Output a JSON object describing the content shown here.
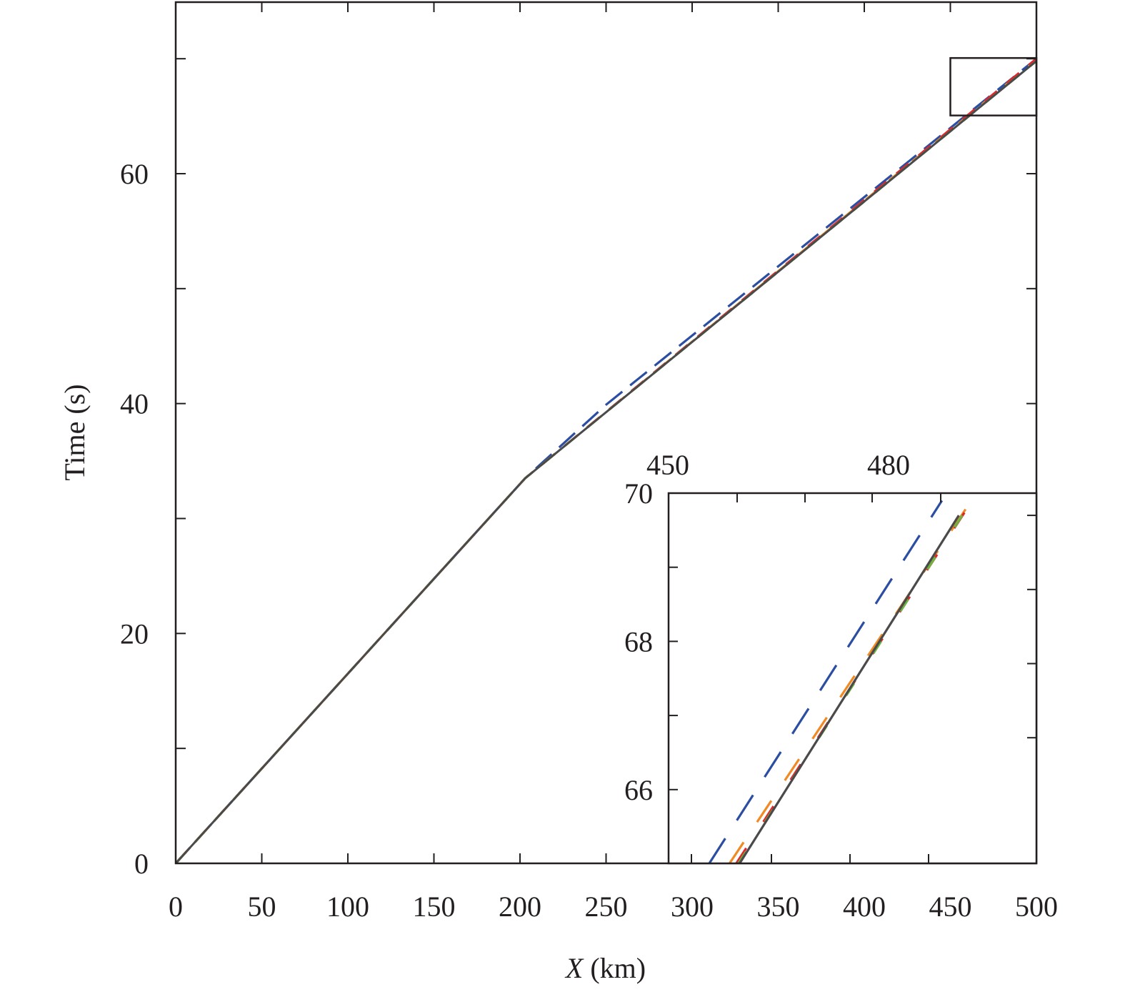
{
  "chart_data": {
    "type": "line",
    "title": "",
    "xlabel": "X (km)",
    "xlabel_var": "X",
    "xlabel_unit": " (km)",
    "ylabel": "Time (s)",
    "xlim": [
      0,
      500
    ],
    "ylim": [
      0,
      75
    ],
    "x_ticks": [
      "0",
      "50",
      "100",
      "150",
      "200",
      "250",
      "300",
      "350",
      "400",
      "450",
      "500"
    ],
    "y_ticks": [
      "0",
      "20",
      "40",
      "60"
    ],
    "grid": false,
    "legend": null,
    "colors": {
      "solid": "#4a4a4a",
      "blue_dashed": "#2b4ea2",
      "orange_dashed": "#f08a24",
      "red_dashed": "#e0262b",
      "green_dashed": "#6db33f",
      "axis": "#231f20"
    },
    "series": [
      {
        "name": "solid (reference)",
        "style": "solid",
        "color": "#4a4a4a",
        "x": [
          0,
          203,
          500
        ],
        "y": [
          0,
          33.5,
          69.8
        ]
      },
      {
        "name": "blue dashed",
        "style": "dashed",
        "color": "#2b4ea2",
        "x": [
          0,
          203,
          250,
          500
        ],
        "y": [
          0,
          33.5,
          39.9,
          70.0
        ]
      },
      {
        "name": "orange dashed",
        "style": "dashed",
        "color": "#f08a24",
        "x": [
          0,
          203,
          500
        ],
        "y": [
          0,
          33.5,
          69.9
        ]
      },
      {
        "name": "red dashed",
        "style": "dashed",
        "color": "#e0262b",
        "x": [
          0,
          203,
          500
        ],
        "y": [
          0,
          33.5,
          70.0
        ]
      },
      {
        "name": "green dashed",
        "style": "dashed",
        "color": "#6db33f",
        "x": [
          0,
          203,
          500
        ],
        "y": [
          0,
          33.5,
          69.8
        ]
      }
    ],
    "zoom_box": {
      "x": [
        450,
        500
      ],
      "y": [
        65,
        70
      ]
    },
    "inset": {
      "xlim": [
        450,
        504.5
      ],
      "ylim": [
        65,
        70
      ],
      "x_ticks": [
        "450",
        "480"
      ],
      "y_ticks": [
        "66",
        "68",
        "70"
      ],
      "series": [
        {
          "name": "solid (reference)",
          "x": [
            460.5,
            493
          ],
          "y": [
            65,
            69.7
          ]
        },
        {
          "name": "blue dashed",
          "x": [
            456,
            490.5
          ],
          "y": [
            65,
            69.9
          ]
        },
        {
          "name": "orange dashed",
          "x": [
            459,
            494.5
          ],
          "y": [
            65,
            69.85
          ]
        },
        {
          "name": "red dashed",
          "x": [
            460,
            495
          ],
          "y": [
            65,
            69.9
          ]
        },
        {
          "name": "green dashed",
          "x": [
            460.3,
            493.5
          ],
          "y": [
            65,
            69.7
          ]
        }
      ]
    }
  }
}
